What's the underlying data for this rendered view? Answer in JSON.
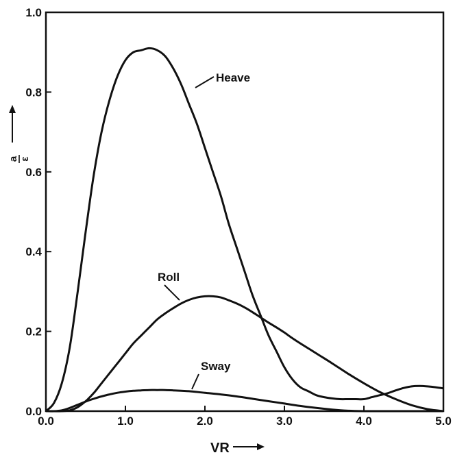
{
  "chart_data": {
    "type": "line",
    "xlabel": "VR",
    "ylabel": "a",
    "ylabel_denominator": "ε",
    "xlim": [
      0.0,
      5.0
    ],
    "ylim": [
      0.0,
      1.0
    ],
    "x_ticks": [
      "0.0",
      "1.0",
      "2.0",
      "3.0",
      "4.0",
      "5.0"
    ],
    "y_ticks": [
      "0.0",
      "0.2",
      "0.4",
      "0.6",
      "0.8",
      "1.0"
    ],
    "grid": false,
    "series": [
      {
        "name": "Heave",
        "x": [
          0.0,
          0.1,
          0.2,
          0.3,
          0.4,
          0.5,
          0.6,
          0.7,
          0.8,
          0.9,
          1.0,
          1.1,
          1.2,
          1.3,
          1.4,
          1.5,
          1.6,
          1.7,
          1.8,
          1.9,
          2.0,
          2.1,
          2.2,
          2.3,
          2.4,
          2.5,
          2.6,
          2.7,
          2.8,
          2.9,
          3.0,
          3.1,
          3.2,
          3.3,
          3.4,
          3.5,
          3.6,
          3.7,
          3.8,
          3.9,
          4.0,
          4.1,
          4.2,
          4.3,
          4.4,
          4.5,
          4.6,
          4.7,
          4.8,
          4.9,
          5.0
        ],
        "y": [
          0.0,
          0.02,
          0.07,
          0.16,
          0.3,
          0.45,
          0.59,
          0.7,
          0.78,
          0.84,
          0.88,
          0.9,
          0.905,
          0.91,
          0.905,
          0.89,
          0.86,
          0.82,
          0.77,
          0.72,
          0.66,
          0.6,
          0.54,
          0.47,
          0.41,
          0.35,
          0.29,
          0.24,
          0.19,
          0.15,
          0.11,
          0.08,
          0.06,
          0.05,
          0.04,
          0.035,
          0.032,
          0.03,
          0.03,
          0.03,
          0.03,
          0.035,
          0.04,
          0.045,
          0.052,
          0.058,
          0.062,
          0.063,
          0.062,
          0.06,
          0.057
        ]
      },
      {
        "name": "Roll",
        "x": [
          0.0,
          0.2,
          0.3,
          0.4,
          0.5,
          0.6,
          0.7,
          0.8,
          0.9,
          1.0,
          1.1,
          1.2,
          1.3,
          1.4,
          1.5,
          1.6,
          1.7,
          1.8,
          1.9,
          2.0,
          2.1,
          2.2,
          2.3,
          2.4,
          2.5,
          2.6,
          2.7,
          2.8,
          2.9,
          3.0,
          3.1,
          3.2,
          3.4,
          3.6,
          3.8,
          4.0,
          4.2,
          4.4,
          4.6,
          4.8,
          5.0
        ],
        "y": [
          0.0,
          0.0,
          0.002,
          0.01,
          0.025,
          0.045,
          0.07,
          0.095,
          0.12,
          0.145,
          0.17,
          0.19,
          0.21,
          0.23,
          0.245,
          0.258,
          0.27,
          0.279,
          0.285,
          0.288,
          0.288,
          0.285,
          0.278,
          0.27,
          0.26,
          0.248,
          0.235,
          0.222,
          0.21,
          0.197,
          0.183,
          0.17,
          0.145,
          0.12,
          0.094,
          0.07,
          0.048,
          0.03,
          0.015,
          0.005,
          0.0
        ]
      },
      {
        "name": "Sway",
        "x": [
          0.0,
          0.1,
          0.2,
          0.3,
          0.4,
          0.5,
          0.6,
          0.7,
          0.8,
          0.9,
          1.0,
          1.1,
          1.2,
          1.3,
          1.4,
          1.5,
          1.6,
          1.8,
          2.0,
          2.2,
          2.4,
          2.6,
          2.8,
          3.0,
          3.2,
          3.4,
          3.6,
          3.8,
          4.0,
          4.2,
          4.5,
          5.0
        ],
        "y": [
          0.0,
          0.0,
          0.002,
          0.008,
          0.016,
          0.024,
          0.031,
          0.037,
          0.042,
          0.046,
          0.049,
          0.051,
          0.052,
          0.053,
          0.053,
          0.053,
          0.052,
          0.05,
          0.046,
          0.042,
          0.037,
          0.031,
          0.025,
          0.019,
          0.013,
          0.008,
          0.004,
          0.001,
          0.0,
          0.0,
          0.0,
          0.0
        ]
      }
    ]
  }
}
